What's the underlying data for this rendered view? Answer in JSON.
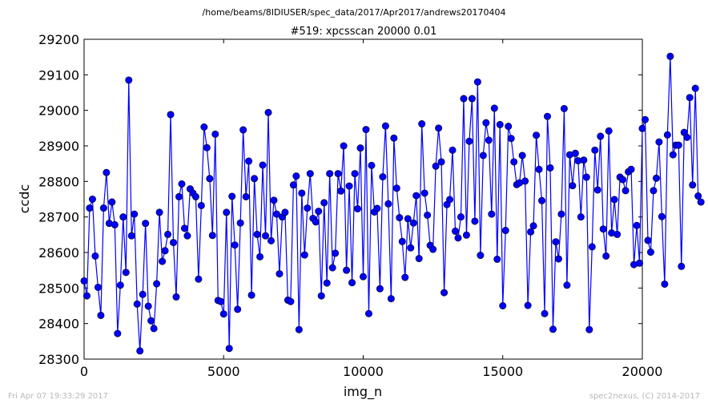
{
  "figure": {
    "suptitle": "/home/beams/8IDIUSER/spec_data/2017/Apr2017/andrews20170404",
    "footer_left": "Fri Apr 07 19:33:29 2017",
    "footer_right": "spec2nexus, (C) 2014-2017"
  },
  "chart_data": {
    "type": "line",
    "title": "#519: xpcsscan 20000 0.01",
    "xlabel": "img_n",
    "ylabel": "ccdc",
    "xlim": [
      0,
      20000
    ],
    "ylim": [
      28300,
      29200
    ],
    "xticks": [
      0,
      5000,
      10000,
      15000,
      20000
    ],
    "yticks": [
      28300,
      28400,
      28500,
      28600,
      28700,
      28800,
      28900,
      29000,
      29100,
      29200
    ],
    "grid": false,
    "marker": "circle",
    "color": "#0000ff",
    "series": [
      {
        "name": "",
        "x_start": 0,
        "x_step": 100,
        "values": [
          28520,
          28478,
          28725,
          28750,
          28590,
          28502,
          28423,
          28725,
          28825,
          28682,
          28742,
          28678,
          28372,
          28508,
          28700,
          28544,
          29085,
          28647,
          28708,
          28455,
          28323,
          28482,
          28682,
          28449,
          28408,
          28386,
          28512,
          28713,
          28575,
          28605,
          28651,
          28988,
          28628,
          28475,
          28757,
          28793,
          28668,
          28647,
          28779,
          28767,
          28757,
          28525,
          28732,
          28953,
          28895,
          28808,
          28648,
          28933,
          28465,
          28462,
          28427,
          28713,
          28330,
          28758,
          28621,
          28440,
          28683,
          28945,
          28757,
          28857,
          28480,
          28808,
          28651,
          28588,
          28846,
          28647,
          28994,
          28633,
          28747,
          28708,
          28540,
          28700,
          28713,
          28466,
          28462,
          28790,
          28815,
          28383,
          28767,
          28593,
          28725,
          28822,
          28696,
          28686,
          28716,
          28478,
          28740,
          28514,
          28822,
          28557,
          28598,
          28822,
          28773,
          28900,
          28550,
          28787,
          28515,
          28822,
          28723,
          28894,
          28532,
          28946,
          28428,
          28845,
          28714,
          28724,
          28498,
          28813,
          28956,
          28737,
          28470,
          28922,
          28781,
          28698,
          28631,
          28530,
          28695,
          28613,
          28683,
          28760,
          28583,
          28962,
          28767,
          28705,
          28620,
          28609,
          28843,
          28950,
          28855,
          28487,
          28735,
          28749,
          28888,
          28660,
          28641,
          28700,
          29033,
          28649,
          28913,
          29033,
          28688,
          29080,
          28592,
          28873,
          28965,
          28916,
          28708,
          29006,
          28581,
          28960,
          28450,
          28662,
          28955,
          28921,
          28855,
          28791,
          28796,
          28873,
          28801,
          28451,
          28658,
          28675,
          28930,
          28834,
          28746,
          28428,
          28983,
          28838,
          28384,
          28630,
          28582,
          28708,
          29005,
          28508,
          28875,
          28788,
          28879,
          28858,
          28700,
          28860,
          28812,
          28383,
          28616,
          28888,
          28776,
          28927,
          28666,
          28590,
          28942,
          28655,
          28749,
          28651,
          28812,
          28805,
          28774,
          28827,
          28834,
          28566,
          28676,
          28570,
          28949,
          28974,
          28634,
          28601,
          28774,
          28809,
          28911,
          28701,
          28511,
          28931,
          29152,
          28875,
          28902,
          28902,
          28561,
          28938,
          28924,
          29036,
          28790,
          29062,
          28759,
          28742
        ]
      }
    ]
  }
}
